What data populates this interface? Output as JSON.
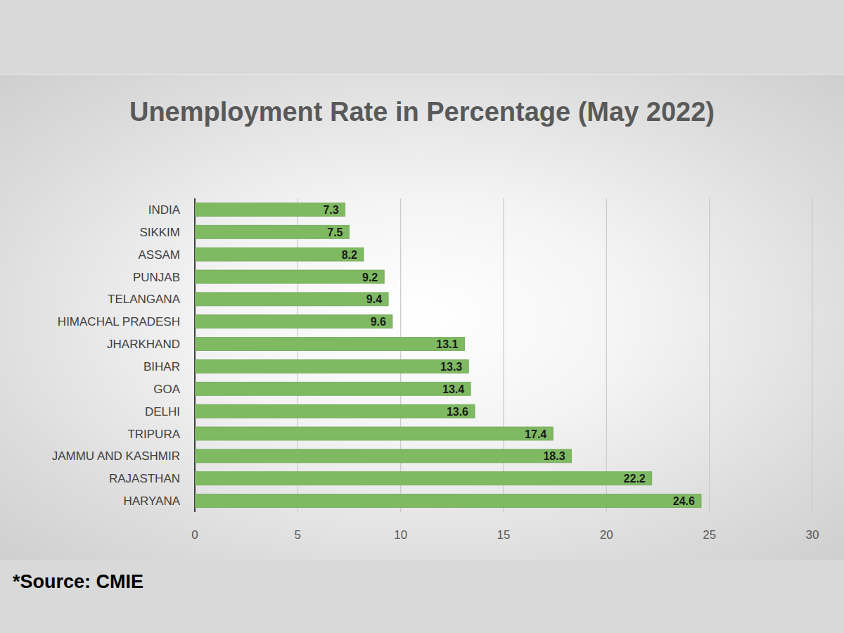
{
  "chart_data": {
    "type": "bar",
    "orientation": "horizontal",
    "title": "Unemployment Rate in Percentage (May 2022)",
    "source": "*Source: CMIE",
    "categories": [
      "INDIA",
      "SIKKIM",
      "ASSAM",
      "PUNJAB",
      "TELANGANA",
      "HIMACHAL PRADESH",
      "JHARKHAND",
      "BIHAR",
      "GOA",
      "DELHI",
      "TRIPURA",
      "JAMMU AND KASHMIR",
      "RAJASTHAN",
      "HARYANA"
    ],
    "values": [
      7.3,
      7.5,
      8.2,
      9.2,
      9.4,
      9.6,
      13.1,
      13.3,
      13.4,
      13.6,
      17.4,
      18.3,
      22.2,
      24.6
    ],
    "color": "#7fba63",
    "xlim": [
      0,
      30
    ],
    "xticks": [
      0,
      5,
      10,
      15,
      20,
      25,
      30
    ],
    "grid": true,
    "data_labels": true
  }
}
